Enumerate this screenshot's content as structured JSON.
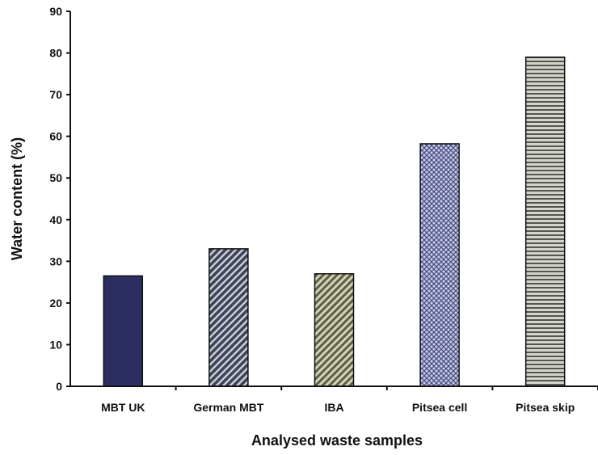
{
  "chart_data": {
    "type": "bar",
    "title": "",
    "xlabel": "Analysed waste samples",
    "ylabel": "Water content (%)",
    "ylim": [
      0,
      90
    ],
    "yticks": [
      0,
      10,
      20,
      30,
      40,
      50,
      60,
      70,
      80,
      90
    ],
    "grid": false,
    "categories": [
      "MBT UK",
      "German MBT",
      "IBA",
      "Pitsea cell",
      "Pitsea skip"
    ],
    "values": [
      26.5,
      33,
      27,
      58.2,
      79
    ],
    "bar_fills": [
      {
        "pattern": "solid",
        "color": "#2b2d63"
      },
      {
        "pattern": "diagonal-dense",
        "color": "#3e4358"
      },
      {
        "pattern": "diagonal",
        "color": "#6f7049"
      },
      {
        "pattern": "crosshatch",
        "color": "#6e72a6"
      },
      {
        "pattern": "horizontal-stripes",
        "color": "#a9aaa2"
      }
    ]
  }
}
